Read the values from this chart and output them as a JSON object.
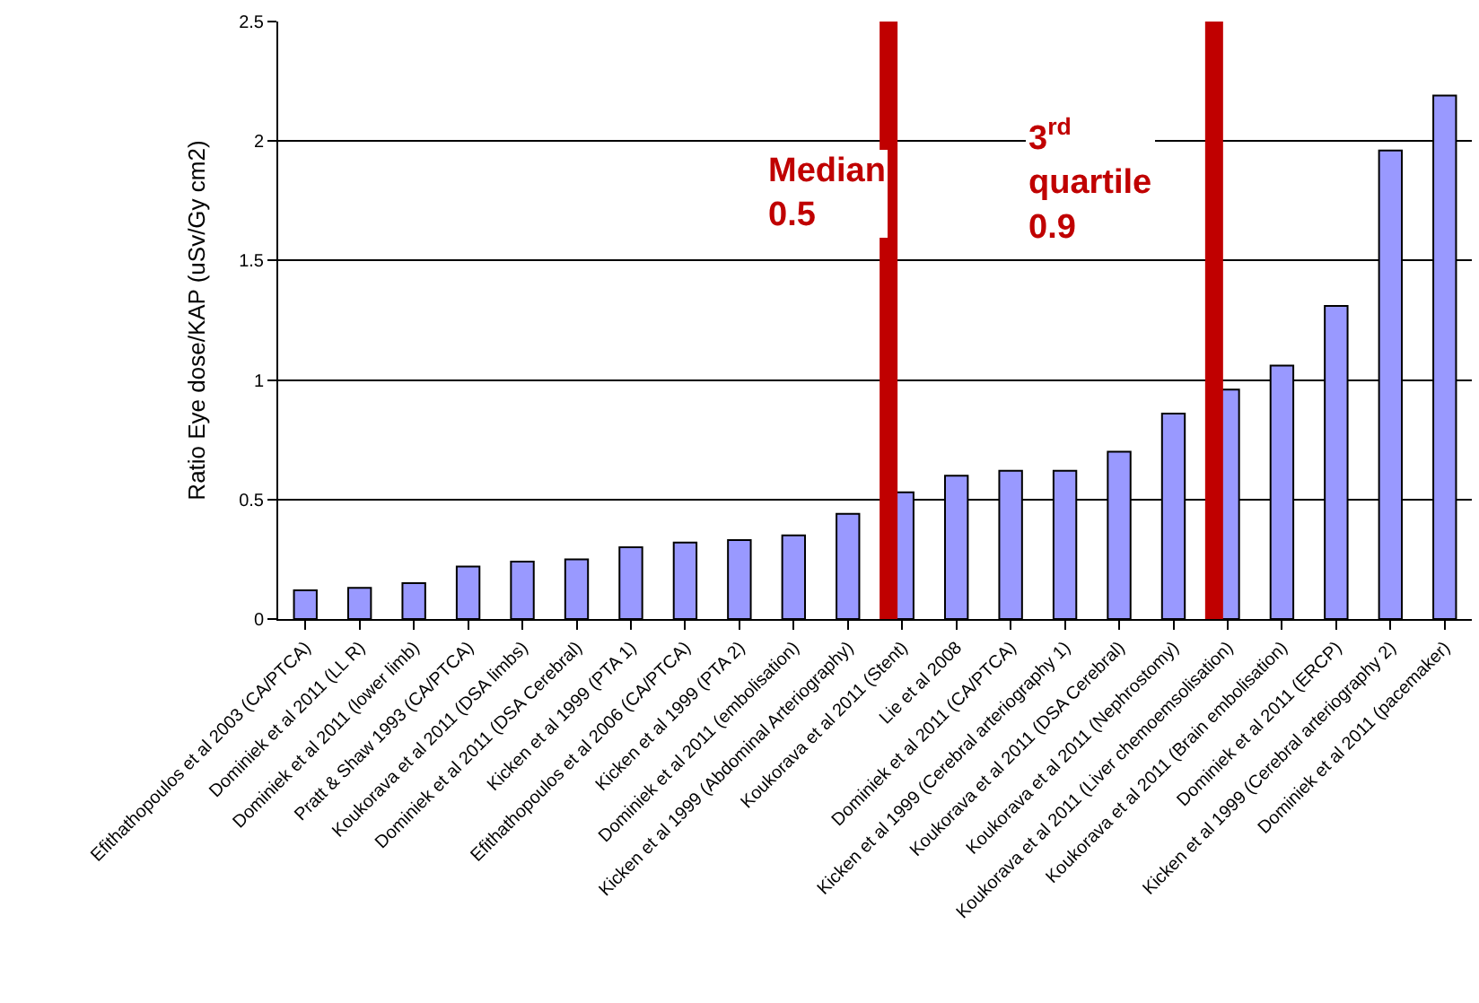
{
  "chart_data": {
    "type": "bar",
    "ylabel": "Ratio Eye dose/KAP (uSv/Gy cm2)",
    "categories": [
      "Efithathopoulos et al 2003 (CA/PTCA)",
      "Dominiek et al 2011 (LL R)",
      "Dominiek et al 2011 (lower limb)",
      "Pratt & Shaw 1993 (CA/PTCA)",
      "Koukorava et al 2011 (DSA limbs)",
      "Dominiek et al 2011 (DSA Cerebral)",
      "Kicken et al 1999 (PTA 1)",
      "Efithathopoulos et al 2006 (CA/PTCA)",
      "Kicken et al 1999 (PTA 2)",
      "Dominiek et al 2011 (embolisation)",
      "Kicken et al 1999 (Abdominal Arteriography)",
      "Koukorava et al 2011 (Stent)",
      "Lie et al 2008",
      "Dominiek et al 2011 (CA/PTCA)",
      "Kicken et al 1999 (Cerebral arteriography 1)",
      "Koukorava et al 2011 (DSA Cerebral)",
      "Koukorava et al 2011 (Nephrostomy)",
      "Koukorava et al 2011 (Liver chemoemsolisation)",
      "Koukorava et al 2011 (Brain embolisation)",
      "Dominiek et al 2011 (ERCP)",
      "Kicken et al 1999 (Cerebral arteriography 2)",
      "Dominiek et al 2011 (pacemaker)"
    ],
    "values": [
      0.12,
      0.13,
      0.15,
      0.22,
      0.24,
      0.25,
      0.3,
      0.32,
      0.33,
      0.35,
      0.44,
      0.53,
      0.6,
      0.62,
      0.62,
      0.7,
      0.86,
      0.96,
      1.06,
      1.31,
      1.96,
      2.19
    ],
    "color": "#9999ff",
    "ylim": [
      0,
      2.5
    ],
    "yticks": [
      0,
      0.5,
      1,
      1.5,
      2,
      2.5
    ],
    "grid": "y",
    "ref_lines": [
      {
        "axis": "x",
        "value": "Koukorava et al 2011 (Stent)",
        "label": "Median\n0.5",
        "color": "#c00000"
      },
      {
        "axis": "x",
        "value": "Koukorava et al 2011 (Liver chemoemsolisation)",
        "label": "3$^{rd}$\nquartile\n0.9",
        "color": "#c00000"
      }
    ]
  }
}
